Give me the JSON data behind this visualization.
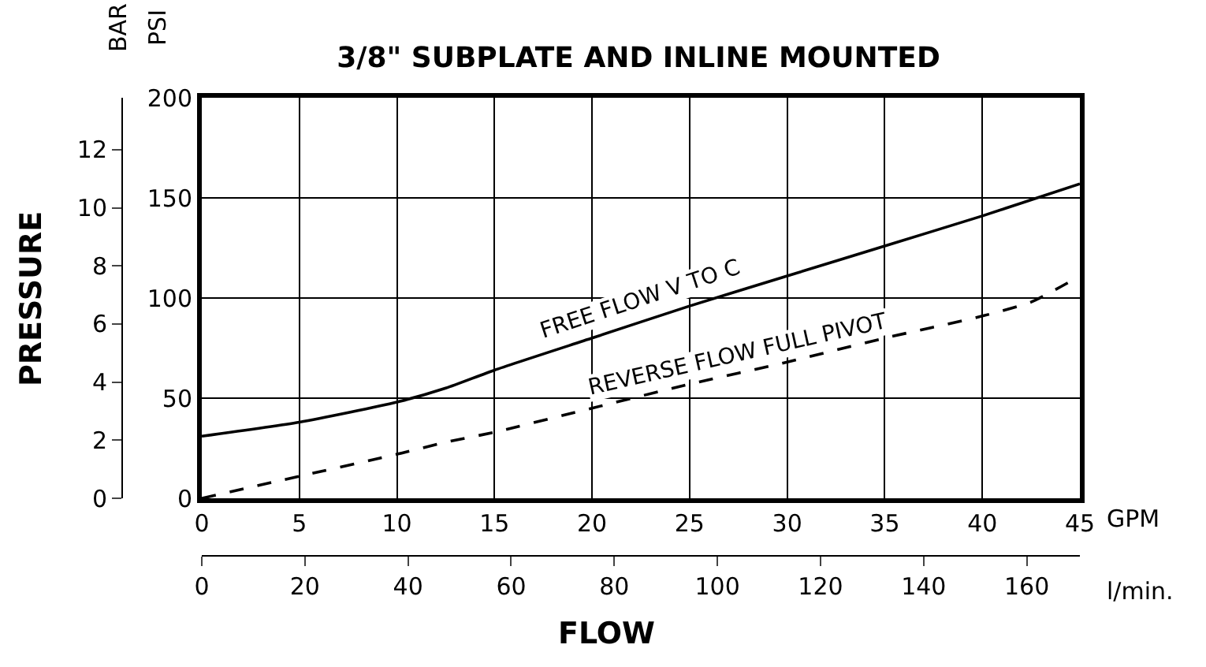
{
  "chart_data": {
    "type": "line",
    "title": "3/8\" SUBPLATE AND INLINE MOUNTED",
    "xlabel": "GPM",
    "x2label": "l/min.",
    "ylabel": "PSI",
    "y2label": "BAR",
    "annotations": [
      "PRESSURE",
      "FLOW"
    ],
    "x": [
      0,
      5,
      10,
      12.5,
      15,
      20,
      25,
      30,
      35,
      40,
      42.5,
      45
    ],
    "series": [
      {
        "name": "FREE FLOW V TO C",
        "color": "#000000",
        "line_style": "solid",
        "values": [
          31,
          38,
          48,
          55,
          64,
          80,
          96,
          111,
          126,
          141,
          149,
          157
        ]
      },
      {
        "name": "REVERSE FLOW FULL PIVOT",
        "color": "#000000",
        "line_style": "dashed",
        "values": [
          0,
          11,
          22,
          28,
          33,
          45,
          57,
          68,
          80,
          91,
          98,
          111
        ]
      }
    ],
    "xlim": [
      0,
      45
    ],
    "xticks": [
      0,
      5,
      10,
      15,
      20,
      25,
      30,
      35,
      40,
      45
    ],
    "ylim": [
      0,
      200
    ],
    "yticks": [
      0,
      50,
      100,
      150,
      200
    ],
    "x2lim": [
      0,
      170.3
    ],
    "x2ticks": [
      0,
      20,
      40,
      60,
      80,
      100,
      120,
      140,
      160
    ],
    "y2lim": [
      0,
      13.79
    ],
    "y2ticks": [
      0,
      2,
      4,
      6,
      8,
      10,
      12
    ],
    "grid": true,
    "legend": false
  }
}
